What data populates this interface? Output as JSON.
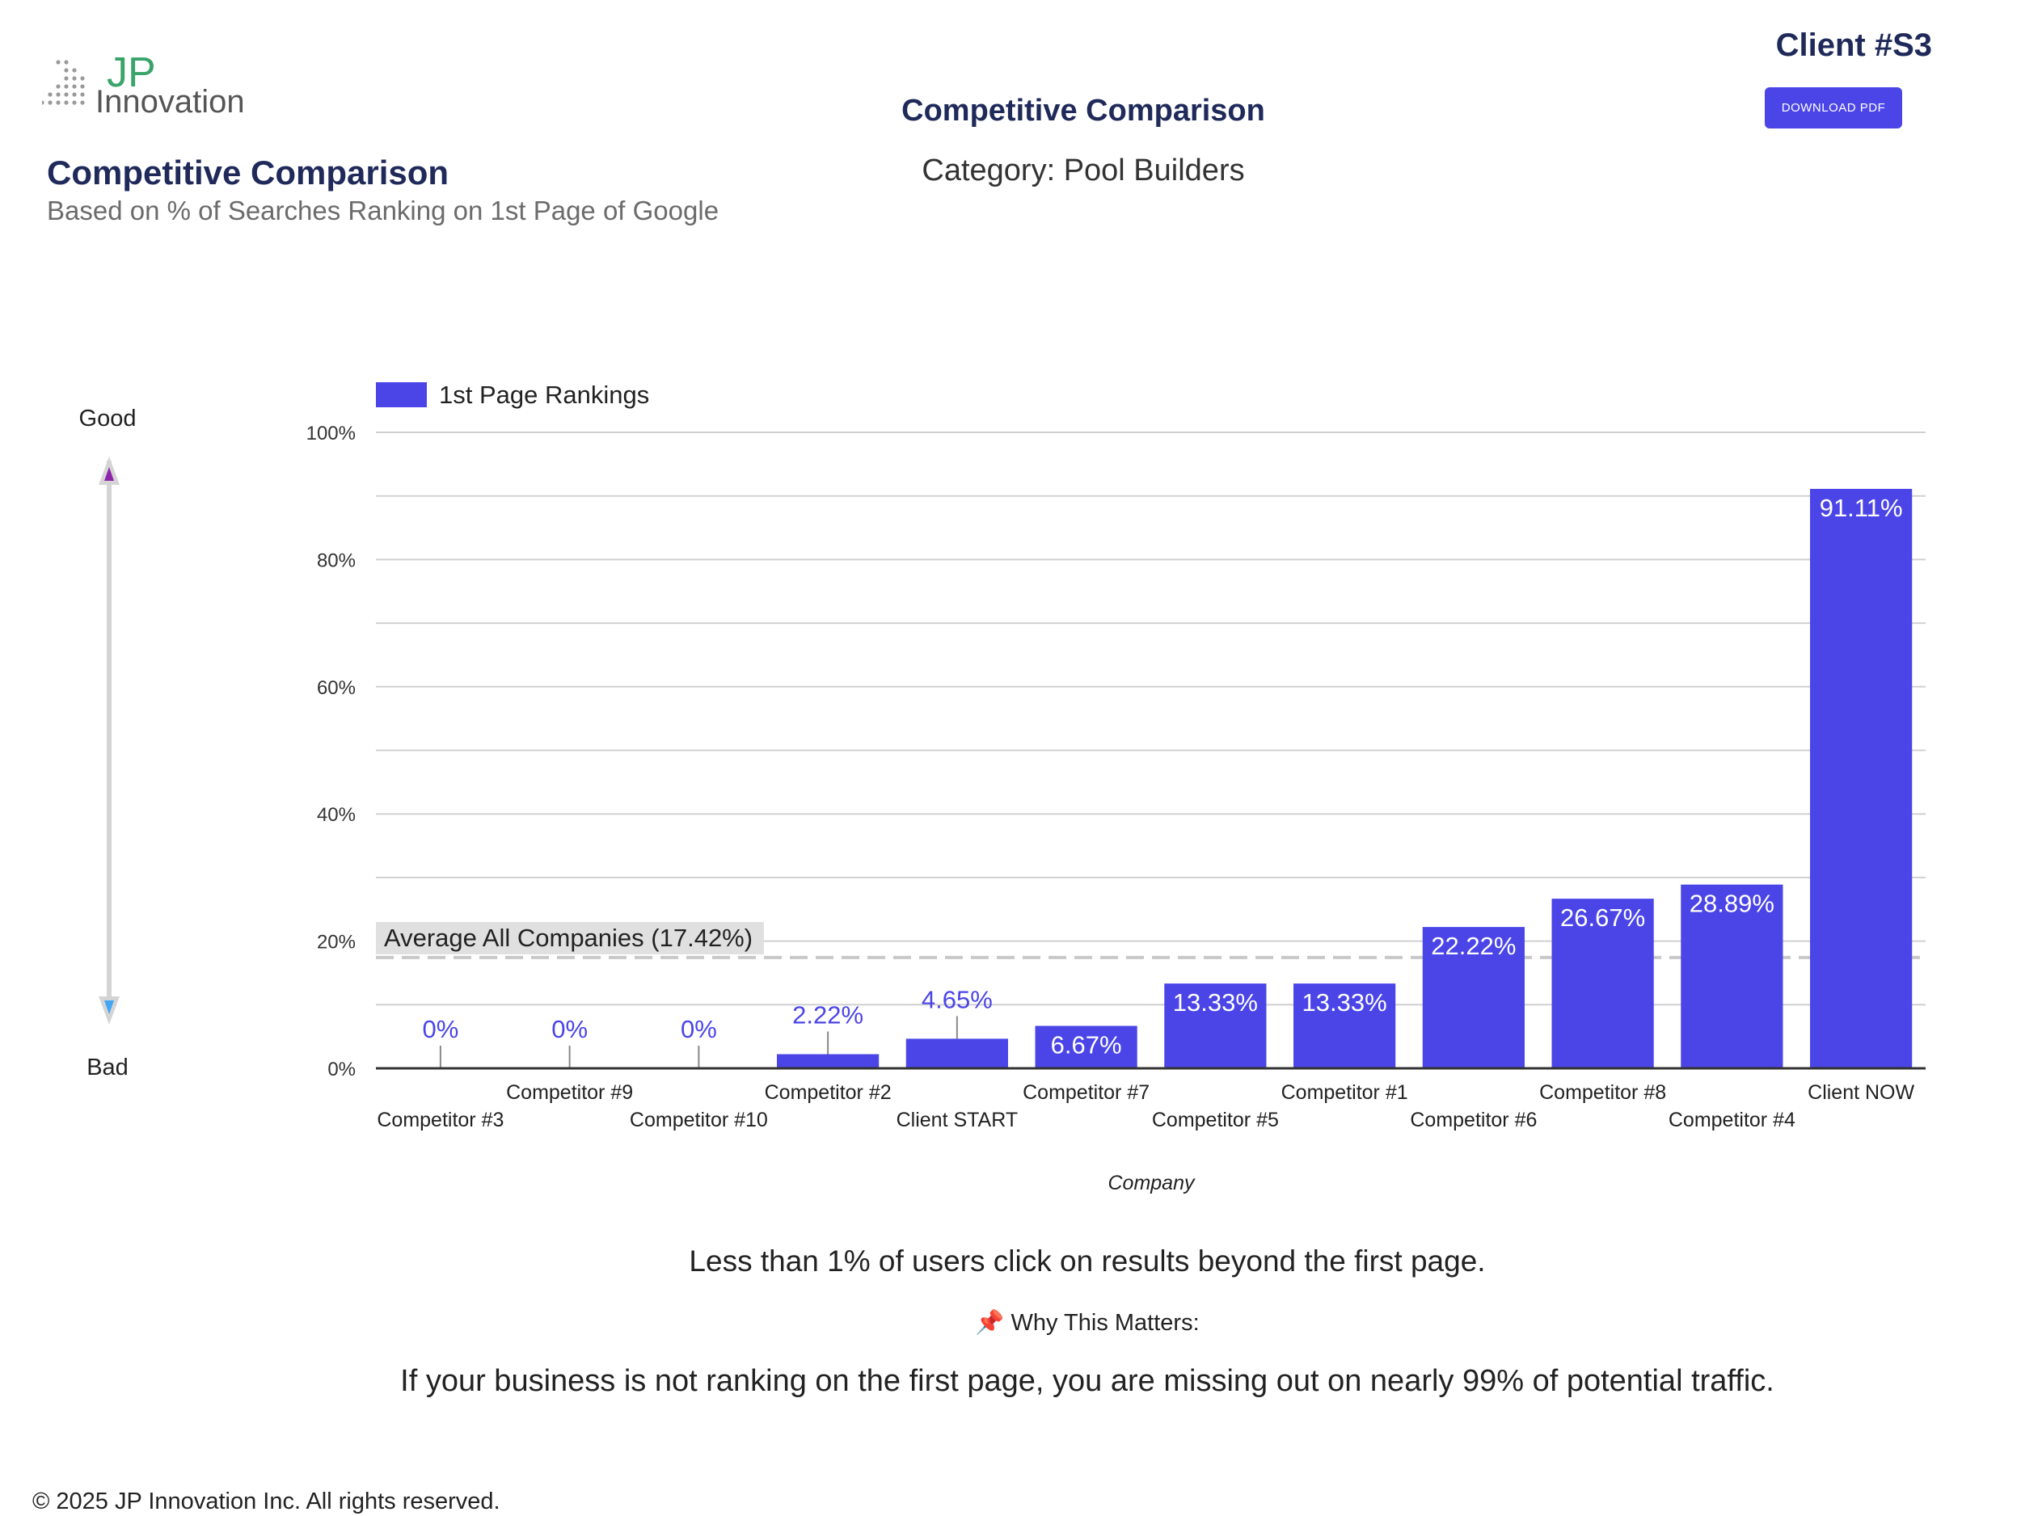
{
  "brand": {
    "logo_jp": "JP",
    "logo_innovation": "Innovation"
  },
  "header": {
    "section_title": "Competitive Comparison",
    "section_subtitle": "Based on % of Searches Ranking on 1st Page of Google",
    "center_title": "Competitive Comparison",
    "category": "Category: Pool Builders",
    "client_id": "Client #S3",
    "download_label": "DOWNLOAD PDF"
  },
  "scale_indicator": {
    "good": "Good",
    "bad": "Bad"
  },
  "colors": {
    "bar": "#4b45e8",
    "navy": "#1f2a5a",
    "average_line": "#c8c8c8",
    "good_arrow": "#8e24aa",
    "bad_arrow": "#42a5f5"
  },
  "chart_data": {
    "type": "bar",
    "legend": "1st Page Rankings",
    "xlabel": "Company",
    "ylim": [
      0,
      100
    ],
    "yticks": [
      "0%",
      "20%",
      "40%",
      "60%",
      "80%",
      "100%"
    ],
    "categories": [
      "Competitor #3",
      "Competitor #9",
      "Competitor #10",
      "Competitor #2",
      "Client START",
      "Competitor #7",
      "Competitor #5",
      "Competitor #1",
      "Competitor #6",
      "Competitor #8",
      "Competitor #4",
      "Client NOW"
    ],
    "values": [
      0,
      0,
      0,
      2.22,
      4.65,
      6.67,
      13.33,
      13.33,
      22.22,
      26.67,
      28.89,
      91.11
    ],
    "data_labels": [
      "0%",
      "0%",
      "0%",
      "2.22%",
      "4.65%",
      "6.67%",
      "13.33%",
      "13.33%",
      "22.22%",
      "26.67%",
      "28.89%",
      "91.11%"
    ],
    "average": {
      "value": 17.42,
      "label": "Average All Companies (17.42%)"
    }
  },
  "messages": {
    "stat": "Less than 1% of users click on results beyond the first page.",
    "why_icon": "📌",
    "why_title": "Why This Matters:",
    "body": "If your business is not ranking on the first page, you are missing out on nearly 99% of potential traffic."
  },
  "footer": {
    "copyright": "© 2025 JP Innovation Inc.  All rights reserved."
  }
}
